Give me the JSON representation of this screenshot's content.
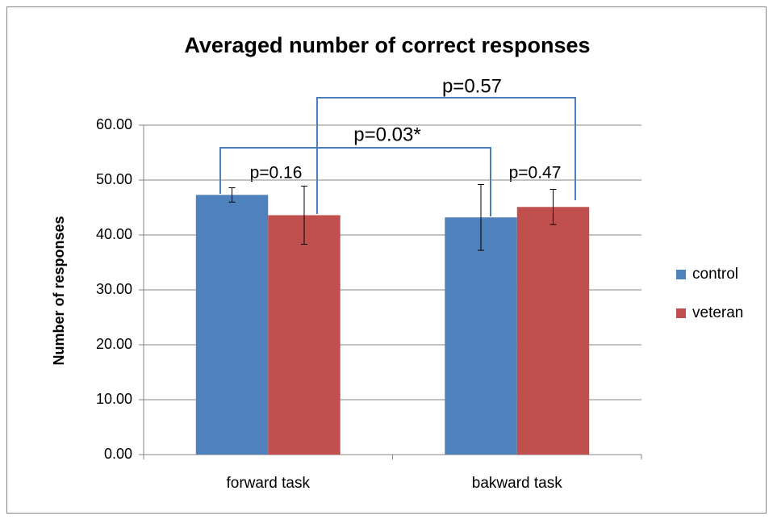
{
  "chart_data": {
    "type": "bar",
    "title": "Averaged number of correct responses",
    "y_label": "Number of responses",
    "categories": [
      "forward task",
      "bakward task"
    ],
    "series": [
      {
        "name": "control",
        "color": "#4f81bd",
        "values": [
          47.3,
          43.2
        ],
        "errors": [
          1.3,
          6.0
        ]
      },
      {
        "name": "veteran",
        "color": "#c0504d",
        "values": [
          43.6,
          45.1
        ],
        "errors": [
          5.3,
          3.2
        ]
      }
    ],
    "ylim": [
      0,
      60
    ],
    "yticks": [
      {
        "value": 0,
        "label": "0.00"
      },
      {
        "value": 10,
        "label": "10.00"
      },
      {
        "value": 20,
        "label": "20.00"
      },
      {
        "value": 30,
        "label": "30.00"
      },
      {
        "value": 40,
        "label": "40.00"
      },
      {
        "value": 50,
        "label": "50.00"
      },
      {
        "value": 60,
        "label": "60.00"
      }
    ],
    "grid": true,
    "legend": "right",
    "annotations": [
      "p=0.57",
      "p=0.03*",
      "p=0.16",
      "p=0.47"
    ]
  }
}
